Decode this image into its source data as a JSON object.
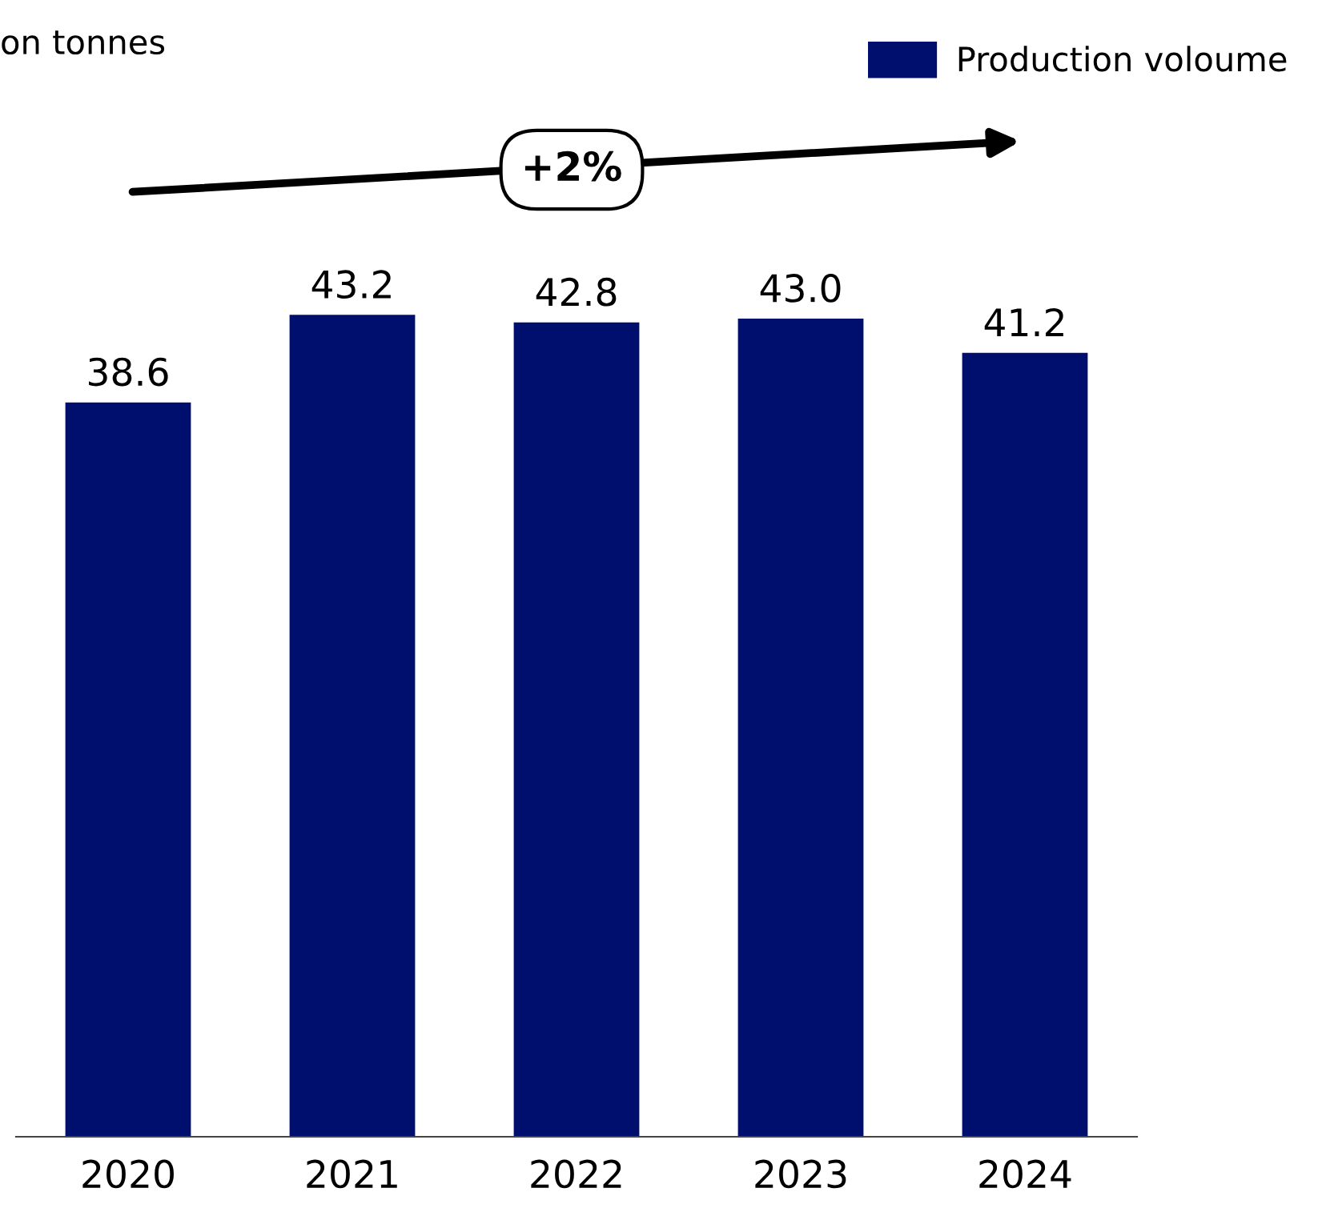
{
  "chart_data": {
    "type": "bar",
    "categories": [
      "2020",
      "2021",
      "2022",
      "2023",
      "2024"
    ],
    "series": [
      {
        "name": "Production voloume",
        "color": "#000f6e",
        "values": [
          38.6,
          43.2,
          42.8,
          43.0,
          41.2
        ],
        "value_labels": [
          "38.6",
          "43.2",
          "42.8",
          "43.0",
          "41.2"
        ]
      }
    ],
    "annotations": [
      "on tonnes",
      "+2%"
    ],
    "legend": "top right",
    "grid": false
  }
}
